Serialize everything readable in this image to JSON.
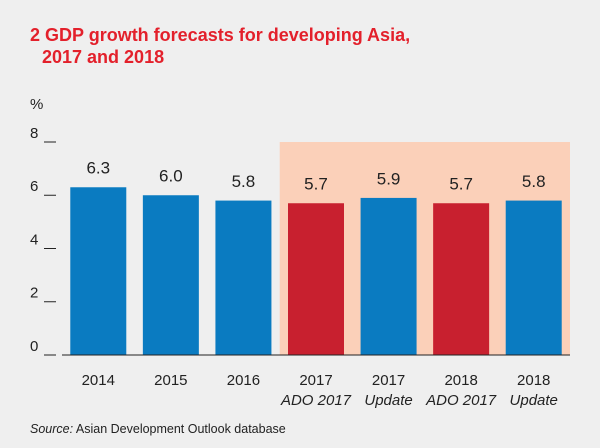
{
  "chart_data": {
    "type": "bar",
    "title": "2 GDP growth forecasts for developing Asia,\n2017 and 2018",
    "y_label": "%",
    "categories": [
      "2014",
      "2015",
      "2016",
      "2017",
      "2017",
      "2018",
      "2018"
    ],
    "sublabels": [
      null,
      null,
      null,
      "ADO 2017",
      "Update",
      "ADO 2017",
      "Update"
    ],
    "values": [
      6.3,
      6.0,
      5.8,
      5.7,
      5.9,
      5.7,
      5.8
    ],
    "value_labels": [
      "6.3",
      "6.0",
      "5.8",
      "5.7",
      "5.9",
      "5.7",
      "5.8"
    ],
    "colors": [
      "#0a7bc1",
      "#0a7bc1",
      "#0a7bc1",
      "#c8202f",
      "#0a7bc1",
      "#c8202f",
      "#0a7bc1"
    ],
    "shade_from": 3,
    "shade_color": "#fbd0b9",
    "ylim": [
      0,
      8
    ],
    "yticks": [
      0,
      2,
      4,
      6,
      8
    ],
    "source_label": "Source:",
    "source": "Asian Development Outlook database"
  }
}
